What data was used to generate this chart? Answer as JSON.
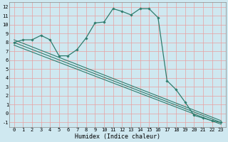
{
  "xlabel": "Humidex (Indice chaleur)",
  "ylabel": "",
  "bg_color": "#cfe8f0",
  "line_color": "#2e7d6e",
  "grid_color": "#e8a0a0",
  "xlim": [
    -0.5,
    23.5
  ],
  "ylim": [
    -1.5,
    12.5
  ],
  "xticks": [
    0,
    1,
    2,
    3,
    4,
    5,
    6,
    7,
    8,
    9,
    10,
    11,
    12,
    13,
    14,
    15,
    16,
    17,
    18,
    19,
    20,
    21,
    22,
    23
  ],
  "yticks": [
    -1,
    0,
    1,
    2,
    3,
    4,
    5,
    6,
    7,
    8,
    9,
    10,
    11,
    12
  ],
  "main_curve": {
    "x": [
      0,
      1,
      2,
      3,
      4,
      5,
      6,
      7,
      8,
      9,
      10,
      11,
      12,
      13,
      14,
      15,
      16,
      17,
      18,
      19,
      20,
      21,
      22,
      23
    ],
    "y": [
      8.0,
      8.3,
      8.3,
      8.8,
      8.3,
      6.5,
      6.5,
      7.2,
      8.5,
      10.2,
      10.3,
      11.8,
      11.5,
      11.1,
      11.8,
      11.8,
      10.8,
      3.7,
      2.7,
      1.3,
      -0.2,
      -0.5,
      -0.8,
      -1.0
    ]
  },
  "regression_lines": [
    {
      "x": [
        0,
        23
      ],
      "y": [
        8.3,
        -0.8
      ]
    },
    {
      "x": [
        0,
        23
      ],
      "y": [
        8.0,
        -1.0
      ]
    },
    {
      "x": [
        0,
        23
      ],
      "y": [
        7.7,
        -1.2
      ]
    }
  ]
}
